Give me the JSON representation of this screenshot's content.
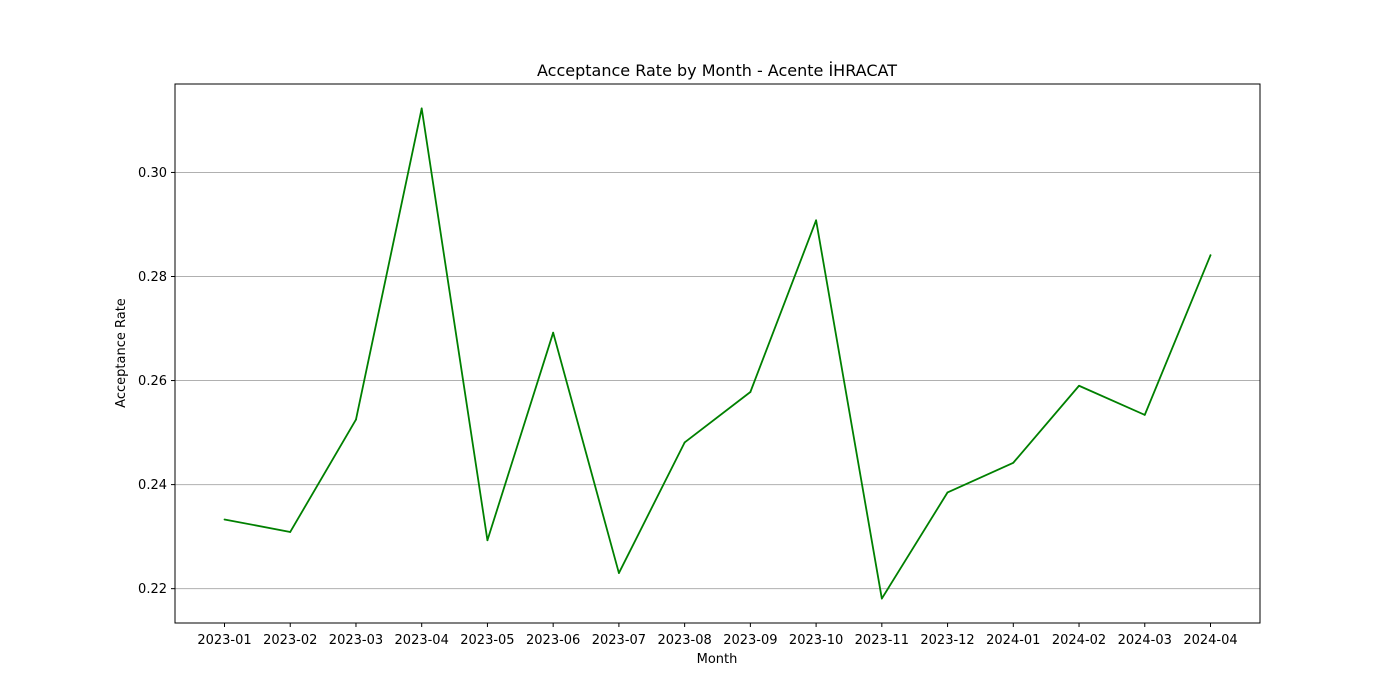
{
  "chart_data": {
    "type": "line",
    "title": "Acceptance Rate by Month - Acente İHRACAT",
    "xlabel": "Month",
    "ylabel": "Acceptance Rate",
    "x": [
      "2023-01",
      "2023-02",
      "2023-03",
      "2023-04",
      "2023-05",
      "2023-06",
      "2023-07",
      "2023-08",
      "2023-09",
      "2023-10",
      "2023-11",
      "2023-12",
      "2024-01",
      "2024-02",
      "2024-03",
      "2024-04"
    ],
    "series": [
      {
        "color": "#008000",
        "values": [
          0.2333,
          0.2309,
          0.2525,
          0.3123,
          0.2293,
          0.2692,
          0.223,
          0.2481,
          0.2578,
          0.2908,
          0.2181,
          0.2385,
          0.2442,
          0.259,
          0.2534,
          0.2841
        ]
      }
    ],
    "yticks": [
      "0.22",
      "0.24",
      "0.26",
      "0.28",
      "0.30"
    ],
    "ylim": [
      0.2134,
      0.317
    ],
    "grid": "y",
    "legend": "none"
  }
}
